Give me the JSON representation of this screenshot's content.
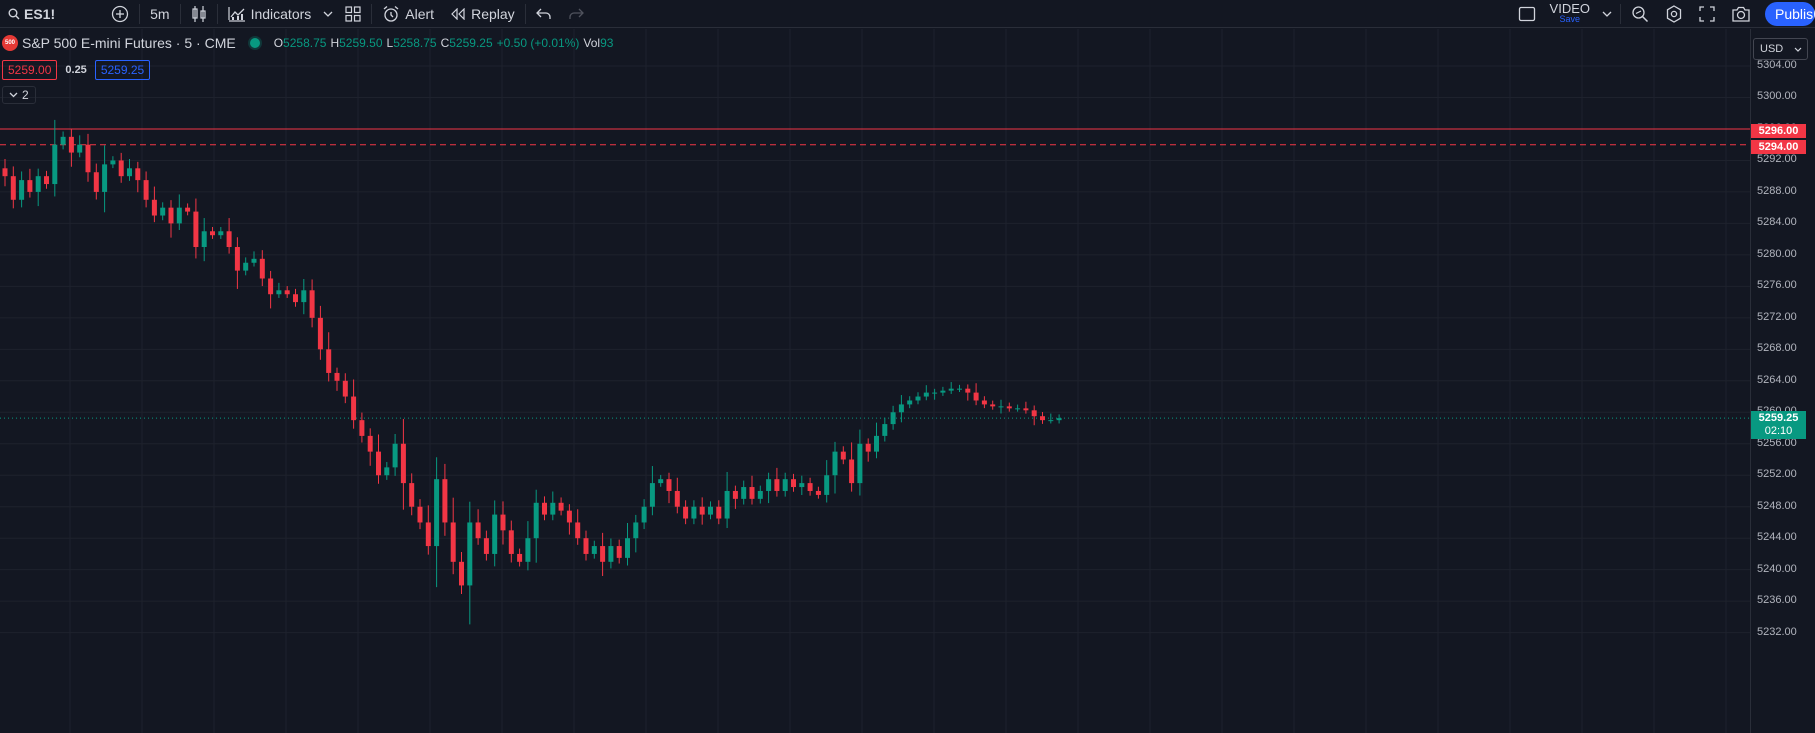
{
  "toolbar": {
    "symbol": "ES1!",
    "interval": "5m",
    "indicators_label": "Indicators",
    "alert_label": "Alert",
    "replay_label": "Replay",
    "video_label": "VIDEO",
    "video_sub": "Save",
    "publish_label": "Publish"
  },
  "legend": {
    "logo_text": "500",
    "title": "S&P 500 E-mini Futures · 5 · CME",
    "open_key": "O",
    "open": "5258.75",
    "high_key": "H",
    "high": "5259.50",
    "low_key": "L",
    "low": "5258.75",
    "close_key": "C",
    "close": "5259.25",
    "change": "+0.50 (+0.01%)",
    "vol_key": "Vol",
    "vol": "93",
    "bid": "5259.00",
    "spread": "0.25",
    "ask": "5259.25",
    "collapse_count": "2"
  },
  "axis": {
    "currency": "USD",
    "ticks": [
      5304,
      5300,
      5296,
      5292,
      5288,
      5284,
      5280,
      5276,
      5272,
      5268,
      5264,
      5260,
      5256,
      5252,
      5248,
      5244,
      5240,
      5236,
      5232
    ],
    "line_solid": "5296.00",
    "line_dashed": "5294.00",
    "last_price": "5259.25",
    "countdown": "02:10"
  },
  "colors": {
    "up": "#089981",
    "down": "#f23645",
    "background": "#131722",
    "grid": "#1e222d",
    "accent": "#2962ff"
  },
  "chart_data": {
    "type": "candlestick",
    "ohlc_path": [
      5290.0,
      5287.0,
      5289.5,
      5288.0,
      5290.0,
      5289.0,
      5294.0,
      5295.0,
      5293.0,
      5294.0,
      5290.5,
      5288.0,
      5291.5,
      5292.0,
      5290.0,
      5291.0,
      5289.5,
      5287.0,
      5285.0,
      5286.0,
      5284.0,
      5286.0,
      5285.5,
      5281.0,
      5283.0,
      5282.5,
      5283.0,
      5281.0,
      5278.0,
      5279.0,
      5279.5,
      5277.0,
      5275.0,
      5275.5,
      5275.0,
      5274.0,
      5275.5,
      5272.0,
      5268.0,
      5265.0,
      5264.0,
      5262.0,
      5259.0,
      5257.0,
      5255.0,
      5252.0,
      5253.0,
      5256.0,
      5251.0,
      5248.0,
      5246.0,
      5243.0,
      5251.5,
      5246.0,
      5241.0,
      5238.0,
      5246.0,
      5244.0,
      5242.0,
      5247.0,
      5245.0,
      5242.0,
      5241.0,
      5244.0,
      5248.5,
      5247.0,
      5248.5,
      5247.5,
      5246.0,
      5244.0,
      5242.0,
      5243.0,
      5241.0,
      5243.0,
      5241.5,
      5244.0,
      5246.0,
      5248.0,
      5251.0,
      5251.5,
      5250.0,
      5248.0,
      5246.5,
      5248.0,
      5247.0,
      5248.0,
      5246.5,
      5250.0,
      5249.0,
      5250.5,
      5249.0,
      5250.0,
      5251.5,
      5250.0,
      5251.5,
      5250.5,
      5251.0,
      5250.0,
      5249.5,
      5252.0,
      5255.0,
      5254.0,
      5251.0,
      5256.0,
      5255.0,
      5257.0,
      5258.5,
      5260.0,
      5261.0,
      5261.5,
      5262.0,
      5262.5,
      5262.5,
      5262.75,
      5263.0,
      5263.0,
      5262.5,
      5261.5,
      5261.0,
      5260.75,
      5260.75,
      5260.5,
      5260.5,
      5260.25,
      5259.5,
      5259.0,
      5259.0,
      5259.25
    ]
  }
}
